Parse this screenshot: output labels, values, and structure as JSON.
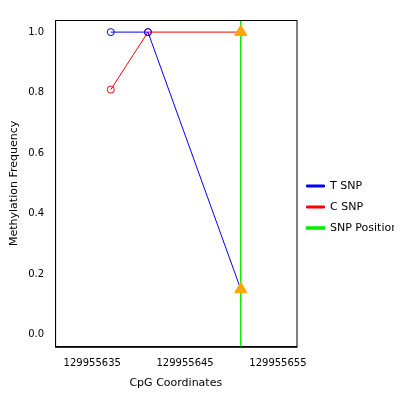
{
  "chart_data": {
    "type": "line",
    "x_label": "CpG Coordinates",
    "y_label": "Methylation Frequency",
    "x": [
      129955637,
      129955641,
      129955651
    ],
    "series": [
      {
        "name": "T SNP",
        "color": "#0000ff",
        "marker": "circle",
        "colors": [
          "#0000ff",
          "#0000ff",
          "#ffa500"
        ],
        "values": [
          1.0,
          1.0,
          0.15
        ]
      },
      {
        "name": "C SNP",
        "color": "#ff0000",
        "marker": "circle",
        "colors": [
          "#ff0000",
          "#ff0000",
          "#ffa500"
        ],
        "values": [
          0.81,
          1.0,
          1.0
        ]
      },
      {
        "name": "SNP Position",
        "type": "vline",
        "color": "#00ee00",
        "marker": "triangle",
        "x": 129955651
      }
    ],
    "xlim": [
      129955631,
      129955657
    ],
    "xticks": [
      129955635,
      129955645,
      129955655
    ],
    "ylim": [
      -0.04,
      1.04
    ],
    "yticks": [
      {
        "value": 0,
        "label": "0.0"
      },
      {
        "value": 0.2,
        "label": "0.2"
      },
      {
        "value": 0.4,
        "label": "0.4"
      },
      {
        "value": 0.6,
        "label": "0.6"
      },
      {
        "value": 0.8,
        "label": "0.8"
      },
      {
        "value": 1,
        "label": "1.0"
      }
    ],
    "grid": false,
    "legend": "right"
  }
}
